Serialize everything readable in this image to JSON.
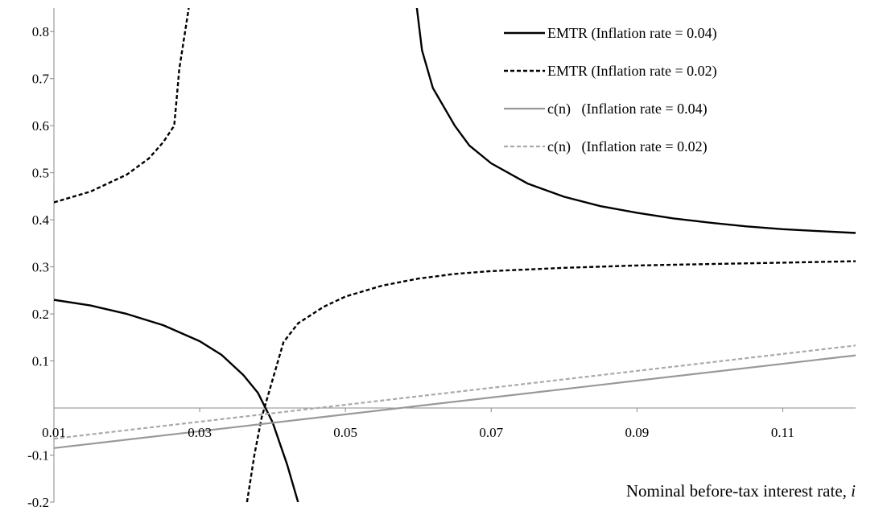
{
  "chart_data": {
    "type": "line",
    "xlabel": "Nominal before-tax interest rate, ",
    "xlabel_var": "i",
    "ylabel": "",
    "xlim": [
      0.01,
      0.12
    ],
    "ylim": [
      -0.2,
      0.85
    ],
    "x_ticks": [
      "0.01",
      "0.03",
      "0.05",
      "0.07",
      "0.09",
      "0.11"
    ],
    "y_ticks": [
      "-0.2",
      "-0.1",
      "0.1",
      "0.2",
      "0.3",
      "0.4",
      "0.5",
      "0.6",
      "0.7",
      "0.8"
    ],
    "grid": false,
    "legend_position": "top-right",
    "series": [
      {
        "name": "EMTR (Inflation rate = 0.04)",
        "color": "#000000",
        "dash": "solid",
        "segments": [
          [
            [
              0.01,
              0.23
            ],
            [
              0.015,
              0.218
            ],
            [
              0.02,
              0.2
            ],
            [
              0.025,
              0.176
            ],
            [
              0.03,
              0.142
            ],
            [
              0.033,
              0.113
            ],
            [
              0.036,
              0.07
            ],
            [
              0.038,
              0.032
            ],
            [
              0.04,
              -0.03
            ],
            [
              0.042,
              -0.12
            ],
            [
              0.0435,
              -0.2
            ]
          ],
          [
            [
              0.0598,
              0.85
            ],
            [
              0.0605,
              0.76
            ],
            [
              0.062,
              0.68
            ],
            [
              0.065,
              0.6
            ],
            [
              0.067,
              0.558
            ],
            [
              0.07,
              0.52
            ],
            [
              0.075,
              0.477
            ],
            [
              0.08,
              0.449
            ],
            [
              0.085,
              0.429
            ],
            [
              0.09,
              0.415
            ],
            [
              0.095,
              0.403
            ],
            [
              0.1,
              0.394
            ],
            [
              0.105,
              0.386
            ],
            [
              0.11,
              0.38
            ],
            [
              0.115,
              0.376
            ],
            [
              0.12,
              0.372
            ]
          ]
        ]
      },
      {
        "name": "EMTR (Inflation rate = 0.02)",
        "color": "#000000",
        "dash": "dashed",
        "segments": [
          [
            [
              0.01,
              0.437
            ],
            [
              0.015,
              0.46
            ],
            [
              0.02,
              0.496
            ],
            [
              0.023,
              0.53
            ],
            [
              0.025,
              0.565
            ],
            [
              0.0265,
              0.6
            ],
            [
              0.0268,
              0.65
            ],
            [
              0.0272,
              0.72
            ],
            [
              0.0285,
              0.85
            ]
          ],
          [
            [
              0.0365,
              -0.2
            ],
            [
              0.0375,
              -0.1
            ],
            [
              0.0385,
              -0.02
            ],
            [
              0.04,
              0.06
            ],
            [
              0.0415,
              0.14
            ],
            [
              0.0435,
              0.18
            ],
            [
              0.047,
              0.215
            ],
            [
              0.05,
              0.237
            ],
            [
              0.055,
              0.26
            ],
            [
              0.06,
              0.275
            ],
            [
              0.065,
              0.285
            ],
            [
              0.07,
              0.291
            ],
            [
              0.08,
              0.298
            ],
            [
              0.09,
              0.303
            ],
            [
              0.1,
              0.306
            ],
            [
              0.11,
              0.309
            ],
            [
              0.12,
              0.312
            ]
          ]
        ]
      },
      {
        "name": "c(n)   (Inflation rate = 0.04)",
        "color": "#999999",
        "dash": "solid",
        "segments": [
          [
            [
              0.01,
              -0.085
            ],
            [
              0.12,
              0.112
            ]
          ]
        ]
      },
      {
        "name": "c(n)   (Inflation rate = 0.02)",
        "color": "#aaaaaa",
        "dash": "dashed",
        "segments": [
          [
            [
              0.01,
              -0.065
            ],
            [
              0.12,
              0.133
            ]
          ]
        ]
      }
    ]
  }
}
